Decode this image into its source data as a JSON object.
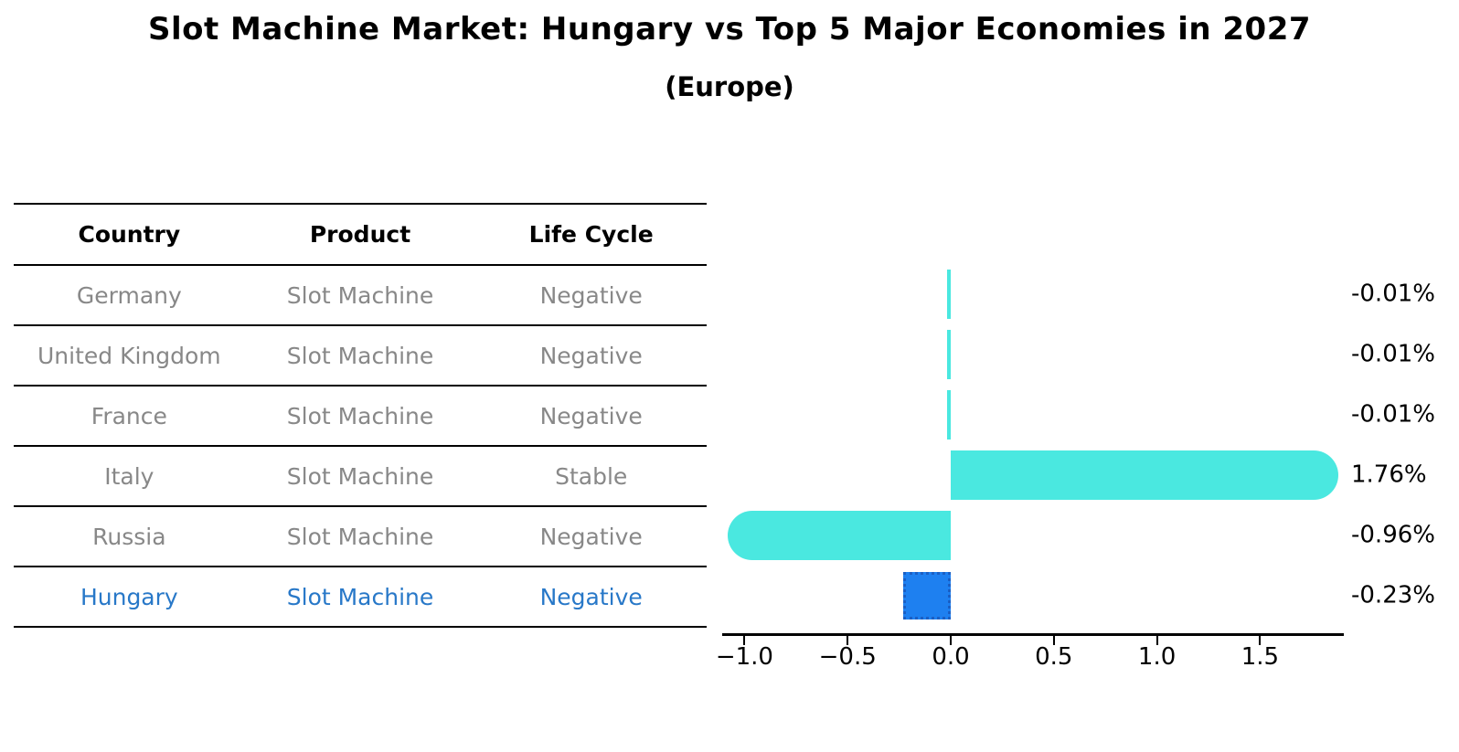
{
  "title": "Slot Machine Market: Hungary vs Top 5 Major Economies in 2027",
  "subtitle": "(Europe)",
  "table": {
    "headers": [
      "Country",
      "Product",
      "Life Cycle"
    ],
    "rows": [
      {
        "country": "Germany",
        "product": "Slot Machine",
        "life_cycle": "Negative",
        "highlight": false
      },
      {
        "country": "United Kingdom",
        "product": "Slot Machine",
        "life_cycle": "Negative",
        "highlight": false
      },
      {
        "country": "France",
        "product": "Slot Machine",
        "life_cycle": "Negative",
        "highlight": false
      },
      {
        "country": "Italy",
        "product": "Slot Machine",
        "life_cycle": "Stable",
        "highlight": false
      },
      {
        "country": "Russia",
        "product": "Slot Machine",
        "life_cycle": "Negative",
        "highlight": false
      },
      {
        "country": "Hungary",
        "product": "Slot Machine",
        "life_cycle": "Negative",
        "highlight": true
      }
    ]
  },
  "chart_data": {
    "type": "bar",
    "orientation": "horizontal",
    "title": "Slot Machine Market: Hungary vs Top 5 Major Economies in 2027",
    "subtitle": "(Europe)",
    "categories": [
      "Germany",
      "United Kingdom",
      "France",
      "Italy",
      "Russia",
      "Hungary"
    ],
    "values": [
      -0.01,
      -0.01,
      -0.01,
      1.76,
      -0.96,
      -0.23
    ],
    "value_labels": [
      "-0.01%",
      "-0.01%",
      "-0.01%",
      "1.76%",
      "-0.96%",
      "-0.23%"
    ],
    "unit": "%",
    "x_tick_values": [
      -1.0,
      -0.5,
      0.0,
      0.5,
      1.0,
      1.5
    ],
    "x_tick_labels": [
      "−1.0",
      "−0.5",
      "0.0",
      "0.5",
      "1.0",
      "1.5"
    ],
    "xlim": [
      -1.11,
      1.91
    ],
    "grid": false,
    "legend": "none",
    "highlight_index": 5,
    "colors": {
      "bar": "#4AE8E0",
      "highlight_bar": "#1E80F0",
      "highlight_bar_edge": "#1A5FC4",
      "highlight_text": "#2878C8",
      "row_text": "#888888",
      "axis": "#000000",
      "value_label": "#000000"
    }
  }
}
